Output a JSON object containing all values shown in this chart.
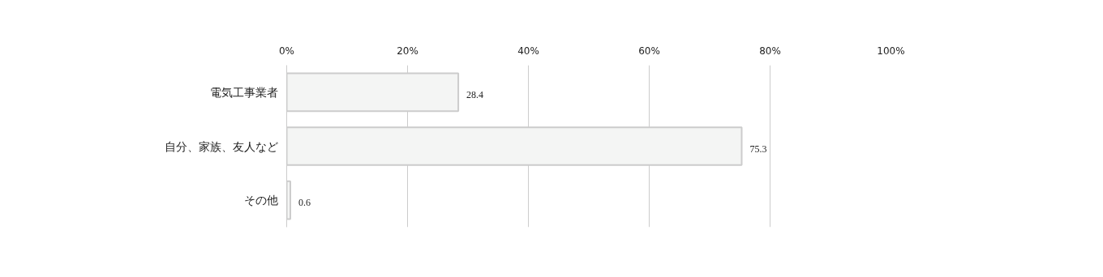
{
  "chart_data": {
    "type": "bar",
    "orientation": "horizontal",
    "categories": [
      "電気工事業者",
      "自分、家族、友人など",
      "その他"
    ],
    "values": [
      28.4,
      75.3,
      0.6
    ],
    "color": "#f4f5f4",
    "xlim": [
      0,
      100
    ],
    "xticks": [
      {
        "value": 0,
        "label": "0%"
      },
      {
        "value": 20,
        "label": "20%"
      },
      {
        "value": 40,
        "label": "40%"
      },
      {
        "value": 60,
        "label": "60%"
      },
      {
        "value": 80,
        "label": "80%"
      },
      {
        "value": 100,
        "label": "100%"
      }
    ],
    "grid": "x",
    "data_labels": true
  }
}
